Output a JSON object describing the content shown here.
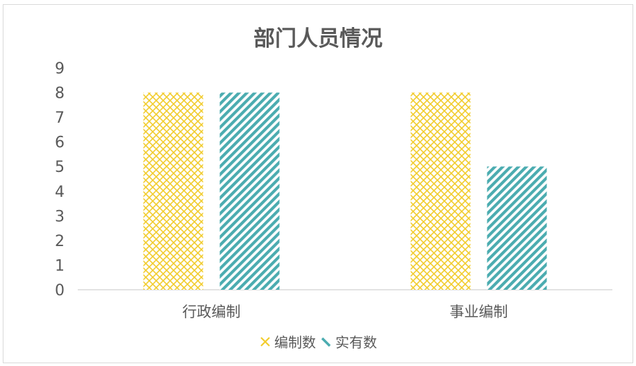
{
  "chart_data": {
    "type": "bar",
    "title": "部门人员情况",
    "categories": [
      "行政编制",
      "事业编制"
    ],
    "series": [
      {
        "name": "编制数",
        "values": [
          8,
          8
        ],
        "color": "#f2cc2c",
        "pattern": "crosshatch"
      },
      {
        "name": "实有数",
        "values": [
          8,
          5
        ],
        "color": "#4bacb0",
        "pattern": "diagonal-stripes"
      }
    ],
    "ylim": [
      0,
      9
    ],
    "yticks": [
      "0",
      "1",
      "2",
      "3",
      "4",
      "5",
      "6",
      "7",
      "8",
      "9"
    ],
    "grid": false,
    "legend_position": "bottom"
  }
}
